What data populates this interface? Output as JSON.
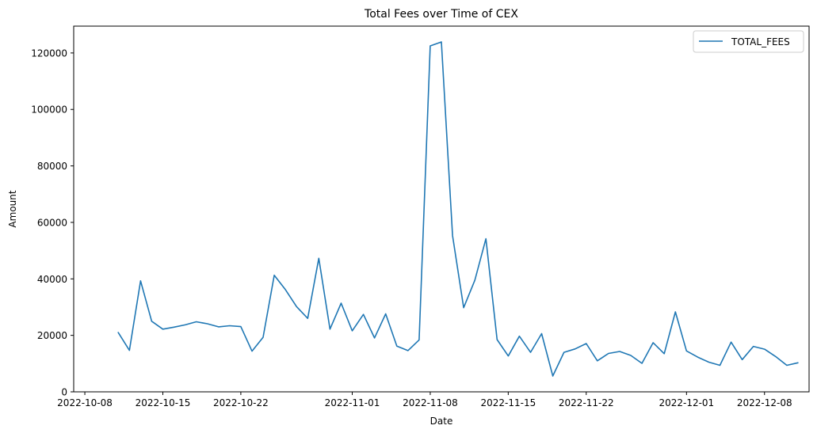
{
  "chart_data": {
    "type": "line",
    "title": "Total Fees over Time of CEX",
    "xlabel": "Date",
    "ylabel": "Amount",
    "x_ticks": [
      "2022-10-08",
      "2022-10-15",
      "2022-10-22",
      "2022-11-01",
      "2022-11-08",
      "2022-11-15",
      "2022-11-22",
      "2022-12-01",
      "2022-12-08"
    ],
    "y_ticks": [
      0,
      20000,
      40000,
      60000,
      80000,
      100000,
      120000
    ],
    "y_tick_labels": [
      "0",
      "20000",
      "40000",
      "60000",
      "80000",
      "100000",
      "120000"
    ],
    "xlim": [
      "2022-10-07",
      "2022-12-12"
    ],
    "ylim": [
      0,
      129500
    ],
    "grid": false,
    "legend_position": "top-right",
    "series_color": "#1f77b4",
    "series": [
      {
        "name": "TOTAL_FEES",
        "x": [
          "2022-10-11",
          "2022-10-12",
          "2022-10-13",
          "2022-10-14",
          "2022-10-15",
          "2022-10-16",
          "2022-10-17",
          "2022-10-18",
          "2022-10-19",
          "2022-10-20",
          "2022-10-21",
          "2022-10-22",
          "2022-10-23",
          "2022-10-24",
          "2022-10-25",
          "2022-10-26",
          "2022-10-27",
          "2022-10-28",
          "2022-10-29",
          "2022-10-30",
          "2022-10-31",
          "2022-11-01",
          "2022-11-02",
          "2022-11-03",
          "2022-11-04",
          "2022-11-05",
          "2022-11-06",
          "2022-11-07",
          "2022-11-08",
          "2022-11-09",
          "2022-11-10",
          "2022-11-11",
          "2022-11-12",
          "2022-11-13",
          "2022-11-14",
          "2022-11-15",
          "2022-11-16",
          "2022-11-17",
          "2022-11-18",
          "2022-11-19",
          "2022-11-20",
          "2022-11-21",
          "2022-11-22",
          "2022-11-23",
          "2022-11-24",
          "2022-11-25",
          "2022-11-26",
          "2022-11-27",
          "2022-11-28",
          "2022-11-29",
          "2022-11-30",
          "2022-12-01",
          "2022-12-02",
          "2022-12-03",
          "2022-12-04",
          "2022-12-05",
          "2022-12-06",
          "2022-12-07",
          "2022-12-08",
          "2022-12-09",
          "2022-12-10",
          "2022-12-11"
        ],
        "values": [
          21000,
          14700,
          39300,
          25000,
          22200,
          22900,
          23700,
          24800,
          24100,
          23000,
          23400,
          23100,
          14400,
          19300,
          41300,
          36200,
          30200,
          26000,
          47300,
          22200,
          31400,
          21600,
          27400,
          19100,
          27600,
          16200,
          14600,
          18400,
          122500,
          123900,
          55300,
          29800,
          39500,
          54200,
          18500,
          12700,
          19700,
          14000,
          20600,
          5600,
          14000,
          15200,
          17100,
          11000,
          13600,
          14300,
          12900,
          10100,
          17400,
          13500,
          28300,
          14500,
          12300,
          10500,
          9400,
          17600,
          11400,
          16100,
          15100,
          12500,
          9400,
          10300
        ]
      }
    ]
  }
}
